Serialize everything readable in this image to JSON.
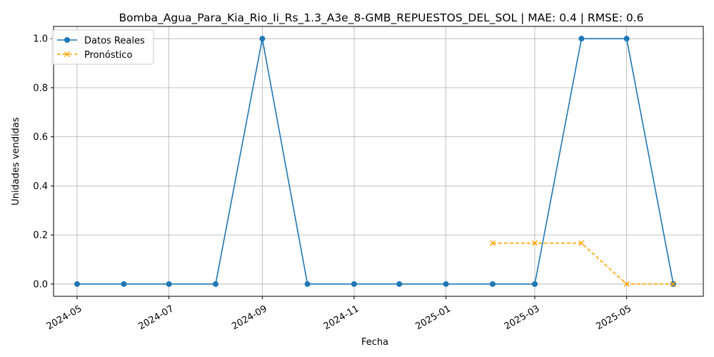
{
  "chart_data": {
    "type": "line",
    "title": "Bomba_Agua_Para_Kia_Rio_Ii_Rs_1.3_A3e_8-GMB_REPUESTOS_DEL_SOL | MAE: 0.4 | RMSE: 0.6",
    "xlabel": "Fecha",
    "ylabel": "Unidades vendidas",
    "x_ticks": [
      "2024-05",
      "2024-07",
      "2024-09",
      "2024-11",
      "2025-01",
      "2025-03",
      "2025-05"
    ],
    "y_ticks": [
      "0.0",
      "0.2",
      "0.4",
      "0.6",
      "0.8",
      "1.0"
    ],
    "ylim": [
      -0.05,
      1.05
    ],
    "grid": true,
    "legend_position": "upper-left",
    "series": [
      {
        "name": "Datos Reales",
        "color": "#1f77b4",
        "style": "solid",
        "marker": "circle",
        "x": [
          "2024-05-01",
          "2024-06-01",
          "2024-07-01",
          "2024-08-01",
          "2024-09-01",
          "2024-10-01",
          "2024-11-01",
          "2024-12-01",
          "2025-01-01",
          "2025-02-01",
          "2025-03-01",
          "2025-04-01",
          "2025-05-01",
          "2025-06-01"
        ],
        "y": [
          0,
          0,
          0,
          0,
          1,
          0,
          0,
          0,
          0,
          0,
          0,
          1,
          1,
          0
        ]
      },
      {
        "name": "Pronóstico",
        "color": "#ffa500",
        "style": "dashed",
        "marker": "x",
        "x": [
          "2025-02-01",
          "2025-03-01",
          "2025-04-01",
          "2025-05-01",
          "2025-06-01"
        ],
        "y": [
          0.1667,
          0.1667,
          0.1667,
          0,
          0
        ]
      }
    ]
  }
}
